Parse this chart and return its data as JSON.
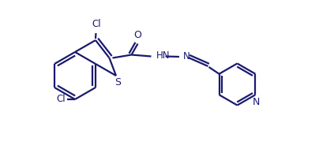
{
  "background_color": "#ffffff",
  "line_color": "#1a1a6e",
  "text_color": "#1a1a6e",
  "line_width": 1.6,
  "font_size": 8.5,
  "figsize": [
    4.23,
    1.89
  ],
  "dpi": 100,
  "xlim": [
    0,
    4.23
  ],
  "ylim": [
    0,
    1.89
  ]
}
